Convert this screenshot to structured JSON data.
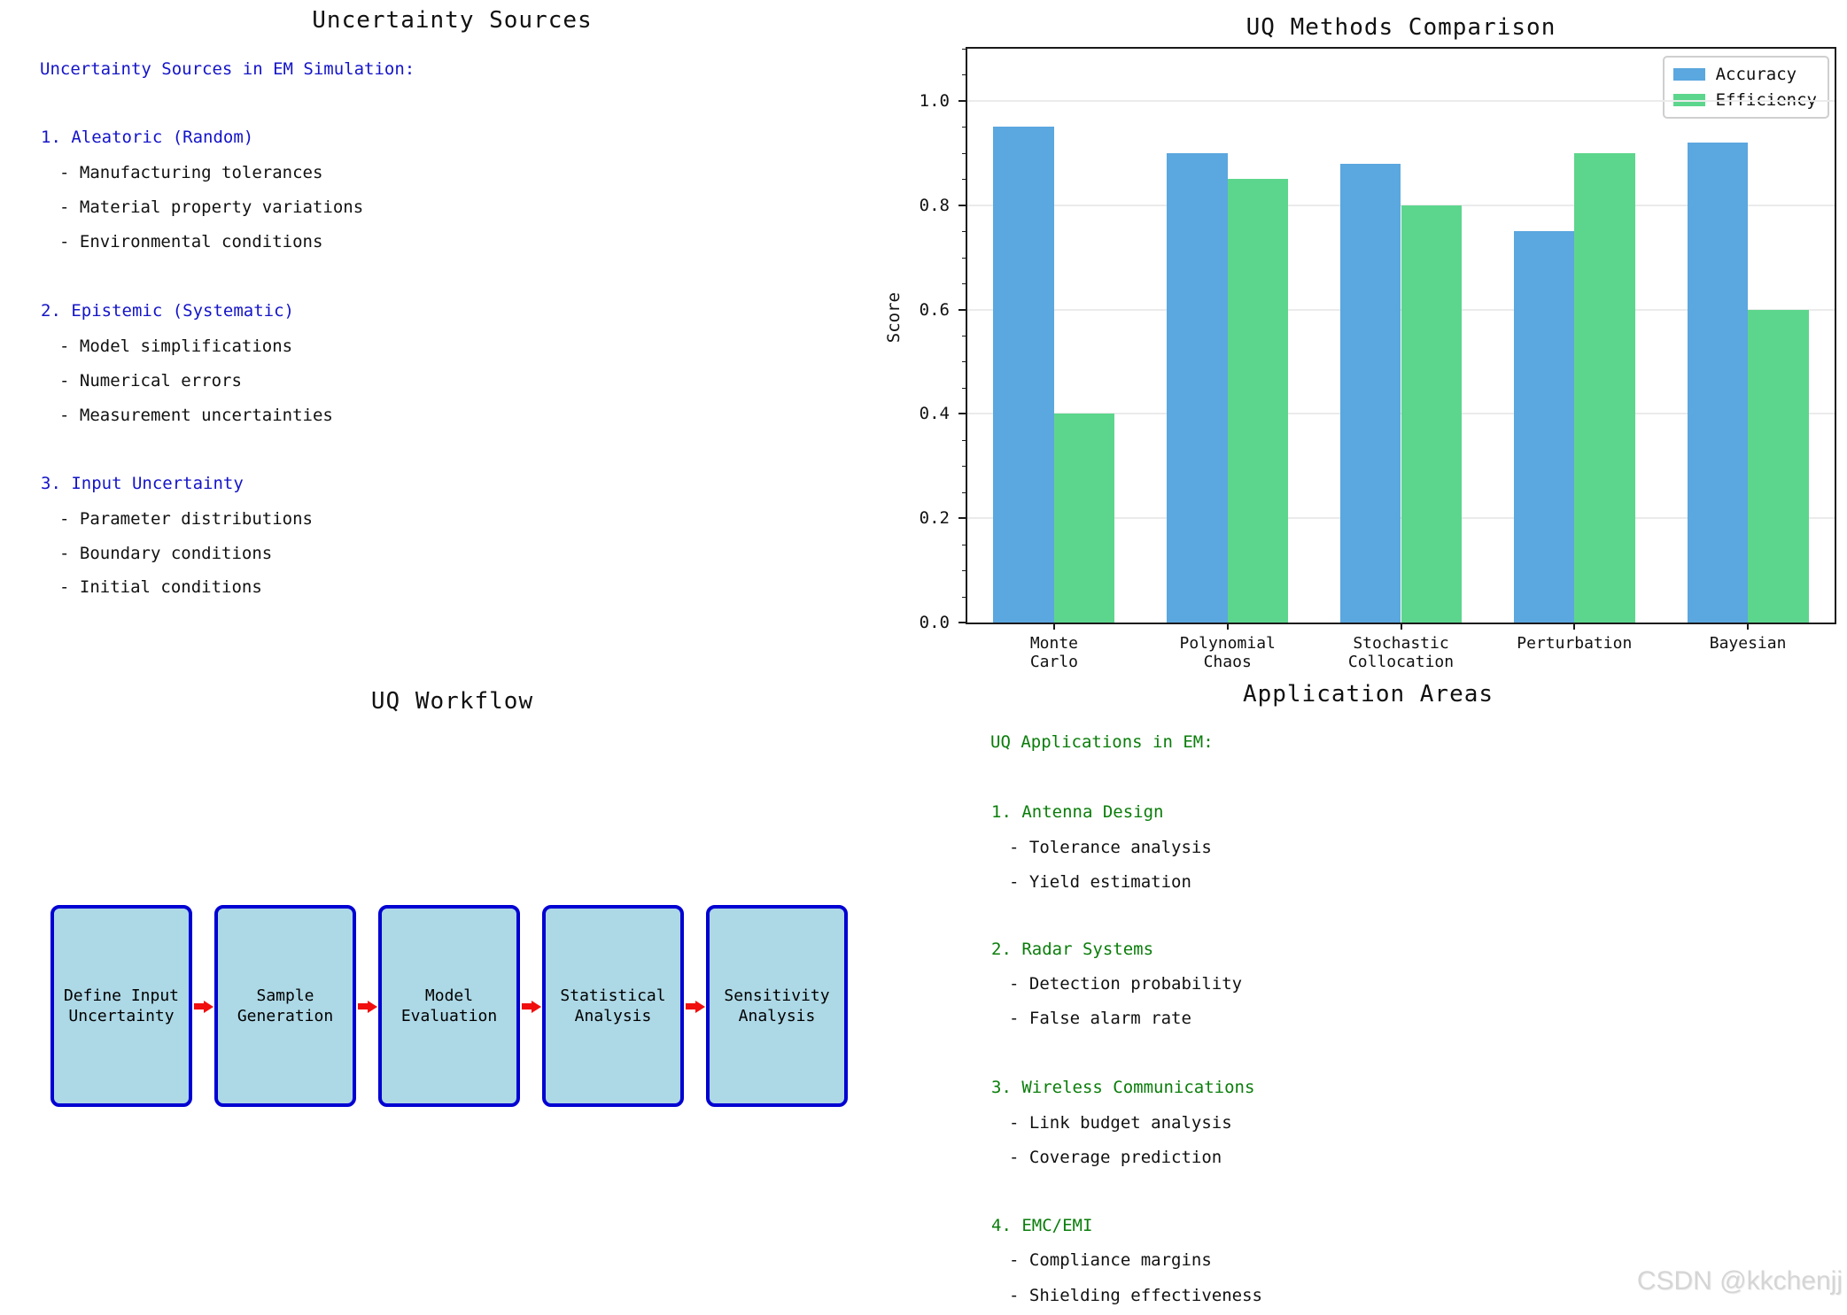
{
  "watermark": "CSDN @kkchenjj",
  "colors": {
    "heading_blue": "#1414C8",
    "heading_green": "#0A7D0A",
    "bar_blue": "#5BA7DF",
    "bar_green": "#5CD68C",
    "box_fill": "#ADD8E6",
    "box_border": "#0000D2",
    "arrow_red": "#F10E0E"
  },
  "panels": {
    "uncertainty_sources": {
      "title": "Uncertainty Sources",
      "heading": "Uncertainty Sources in EM Simulation:",
      "sections": [
        {
          "label": "1. Aleatoric (Random)",
          "items": [
            "- Manufacturing tolerances",
            "- Material property variations",
            "- Environmental conditions"
          ]
        },
        {
          "label": "2. Epistemic (Systematic)",
          "items": [
            "- Model simplifications",
            "- Numerical errors",
            "- Measurement uncertainties"
          ]
        },
        {
          "label": "3. Input Uncertainty",
          "items": [
            "- Parameter distributions",
            "- Boundary conditions",
            "- Initial conditions"
          ]
        }
      ]
    },
    "workflow": {
      "title": "UQ Workflow",
      "steps": [
        "Define Input\nUncertainty",
        "Sample\nGeneration",
        "Model\nEvaluation",
        "Statistical\nAnalysis",
        "Sensitivity\nAnalysis"
      ]
    },
    "applications": {
      "title": "Application Areas",
      "heading": "UQ Applications in EM:",
      "sections": [
        {
          "label": "1. Antenna Design",
          "items": [
            "- Tolerance analysis",
            "- Yield estimation"
          ]
        },
        {
          "label": "2. Radar Systems",
          "items": [
            "- Detection probability",
            "- False alarm rate"
          ]
        },
        {
          "label": "3. Wireless Communications",
          "items": [
            "- Link budget analysis",
            "- Coverage prediction"
          ]
        },
        {
          "label": "4. EMC/EMI",
          "items": [
            "- Compliance margins",
            "- Shielding effectiveness"
          ]
        }
      ]
    }
  },
  "chart_data": {
    "type": "bar",
    "title": "UQ Methods Comparison",
    "categories": [
      "Monte\nCarlo",
      "Polynomial\nChaos",
      "Stochastic\nCollocation",
      "Perturbation",
      "Bayesian"
    ],
    "series": [
      {
        "name": "Accuracy",
        "color": "#5BA7DF",
        "values": [
          0.95,
          0.9,
          0.88,
          0.75,
          0.92
        ]
      },
      {
        "name": "Efficiency",
        "color": "#5CD68C",
        "values": [
          0.4,
          0.85,
          0.8,
          0.9,
          0.6
        ]
      }
    ],
    "xlabel": "",
    "ylabel": "Score",
    "ylim": [
      0,
      1.1
    ],
    "yticks": [
      0.0,
      0.2,
      0.4,
      0.6,
      0.8,
      1.0
    ],
    "grid": "horizontal",
    "legend_position": "upper right",
    "bar_group_width": 1.0,
    "bar_width": 0.35
  }
}
